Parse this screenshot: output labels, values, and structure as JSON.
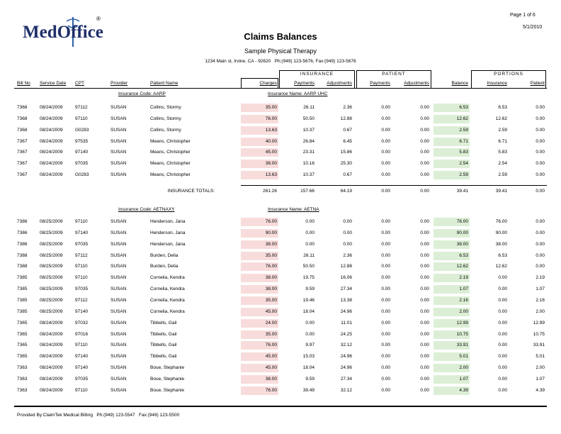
{
  "header": {
    "page": "Page 1 of 6",
    "date": "5/1/2010",
    "logo": {
      "name": "MedOffice",
      "mark": "®"
    },
    "title": "Claims Balances",
    "subtitle": "Sample Physical Therapy",
    "address": "1234 Main st, Irvine, CA - 92620   Ph:(949) 123-5676, Fax:(949) 123-5676"
  },
  "table": {
    "group_headers": [
      "INSURANCE",
      "PATIENT",
      "PORTIONS"
    ],
    "columns": [
      "Bill No",
      "Service Date",
      "CPT",
      "Provider",
      "Patient Name",
      "Charges",
      "Payments",
      "Adjustments",
      "Payments",
      "Adjustments",
      "Balance",
      "Insurance",
      "Patient"
    ],
    "groups": [
      {
        "code": "Insurance Code: AARP",
        "name": "Insurance Name: AARP UHC",
        "rows": [
          [
            "7368",
            "08/24/2009",
            "97112",
            "SUSAN",
            "Collins, Stormy",
            "35.00",
            "26.11",
            "2.36",
            "0.00",
            "0.00",
            "6.53",
            "6.53",
            "0.00"
          ],
          [
            "7368",
            "08/24/2009",
            "97110",
            "SUSAN",
            "Collins, Stormy",
            "76.00",
            "50.50",
            "12.88",
            "0.00",
            "0.00",
            "12.62",
            "12.62",
            "0.00"
          ],
          [
            "7368",
            "08/24/2009",
            "G0283",
            "SUSAN",
            "Collins, Stormy",
            "13.63",
            "10.37",
            "0.67",
            "0.00",
            "0.00",
            "2.59",
            "2.59",
            "0.00"
          ],
          [
            "7367",
            "08/24/2009",
            "97535",
            "SUSAN",
            "Means, Christopher",
            "40.00",
            "26.84",
            "6.45",
            "0.00",
            "0.00",
            "6.71",
            "6.71",
            "0.00"
          ],
          [
            "7367",
            "08/24/2009",
            "97140",
            "SUSAN",
            "Means, Christopher",
            "45.00",
            "23.31",
            "15.86",
            "0.00",
            "0.00",
            "5.83",
            "5.83",
            "0.00"
          ],
          [
            "7367",
            "08/24/2009",
            "97035",
            "SUSAN",
            "Means, Christopher",
            "38.00",
            "10.16",
            "25.30",
            "0.00",
            "0.00",
            "2.54",
            "2.54",
            "0.00"
          ],
          [
            "7367",
            "08/24/2009",
            "G0283",
            "SUSAN",
            "Means, Christopher",
            "13.63",
            "10.37",
            "0.67",
            "0.00",
            "0.00",
            "2.59",
            "2.59",
            "0.00"
          ]
        ],
        "totals": {
          "label": "INSURANCE TOTALS:",
          "values": [
            "261.26",
            "157.66",
            "64.19",
            "0.00",
            "0.00",
            "39.41",
            "39.41",
            "0.00"
          ]
        }
      },
      {
        "code": "Insurance Code: AETNAXY",
        "name": "Insurance Name: AETNA",
        "rows": [
          [
            "7386",
            "08/25/2009",
            "97110",
            "SUSAN",
            "Henderson, Jana",
            "76.00",
            "0.00",
            "0.00",
            "0.00",
            "0.00",
            "76.00",
            "76.00",
            "0.00"
          ],
          [
            "7386",
            "08/25/2009",
            "97140",
            "SUSAN",
            "Henderson, Jana",
            "90.00",
            "0.00",
            "0.00",
            "0.00",
            "0.00",
            "90.00",
            "90.00",
            "0.00"
          ],
          [
            "7386",
            "08/25/2009",
            "97035",
            "SUSAN",
            "Henderson, Jana",
            "38.00",
            "0.00",
            "0.00",
            "0.00",
            "0.00",
            "38.00",
            "38.00",
            "0.00"
          ],
          [
            "7388",
            "08/25/2009",
            "97112",
            "SUSAN",
            "Burden, Delia",
            "35.00",
            "26.11",
            "2.36",
            "0.00",
            "0.00",
            "6.53",
            "6.53",
            "0.00"
          ],
          [
            "7388",
            "08/25/2009",
            "97110",
            "SUSAN",
            "Burden, Delia",
            "76.00",
            "50.50",
            "12.88",
            "0.00",
            "0.00",
            "12.62",
            "12.62",
            "0.00"
          ],
          [
            "7385",
            "08/25/2009",
            "97110",
            "SUSAN",
            "Cornelia, Kendra",
            "38.00",
            "19.75",
            "16.06",
            "0.00",
            "0.00",
            "2.19",
            "0.00",
            "2.19"
          ],
          [
            "7385",
            "08/25/2009",
            "97035",
            "SUSAN",
            "Cornelia, Kendra",
            "38.00",
            "9.59",
            "27.34",
            "0.00",
            "0.00",
            "1.07",
            "0.00",
            "1.07"
          ],
          [
            "7385",
            "08/25/2009",
            "97112",
            "SUSAN",
            "Cornelia, Kendra",
            "35.00",
            "19.46",
            "13.38",
            "0.00",
            "0.00",
            "2.16",
            "0.00",
            "2.16"
          ],
          [
            "7385",
            "08/25/2009",
            "97140",
            "SUSAN",
            "Cornelia, Kendra",
            "45.00",
            "18.04",
            "24.96",
            "0.00",
            "0.00",
            "2.00",
            "0.00",
            "2.00"
          ],
          [
            "7365",
            "08/24/2009",
            "97032",
            "SUSAN",
            "Tibbells, Gail",
            "24.00",
            "0.00",
            "11.01",
            "0.00",
            "0.00",
            "12.99",
            "0.00",
            "12.99"
          ],
          [
            "7365",
            "08/24/2009",
            "97016",
            "SUSAN",
            "Tibbells, Gail",
            "35.00",
            "0.00",
            "24.25",
            "0.00",
            "0.00",
            "10.75",
            "0.00",
            "10.75"
          ],
          [
            "7365",
            "08/24/2009",
            "97110",
            "SUSAN",
            "Tibbells, Gail",
            "76.00",
            "9.97",
            "32.12",
            "0.00",
            "0.00",
            "33.91",
            "0.00",
            "33.91"
          ],
          [
            "7365",
            "08/24/2009",
            "97140",
            "SUSAN",
            "Tibbells, Gail",
            "45.00",
            "15.03",
            "24.96",
            "0.00",
            "0.00",
            "5.01",
            "0.00",
            "5.01"
          ],
          [
            "7363",
            "08/24/2009",
            "97140",
            "SUSAN",
            "Boue, Stephanie",
            "45.00",
            "18.04",
            "24.96",
            "0.00",
            "0.00",
            "2.00",
            "0.00",
            "2.00"
          ],
          [
            "7363",
            "08/24/2009",
            "97035",
            "SUSAN",
            "Boue, Stephanie",
            "38.00",
            "9.59",
            "27.34",
            "0.00",
            "0.00",
            "1.07",
            "0.00",
            "1.07"
          ],
          [
            "7363",
            "08/24/2009",
            "97110",
            "SUSAN",
            "Boue, Stephanie",
            "76.00",
            "39.49",
            "32.12",
            "0.00",
            "0.00",
            "4.39",
            "0.00",
            "4.39"
          ]
        ]
      }
    ]
  },
  "footer": "Provided By:ClaimTek Medical Billing   Ph:(949) 123-5547   Fax:(949) 123-5500"
}
